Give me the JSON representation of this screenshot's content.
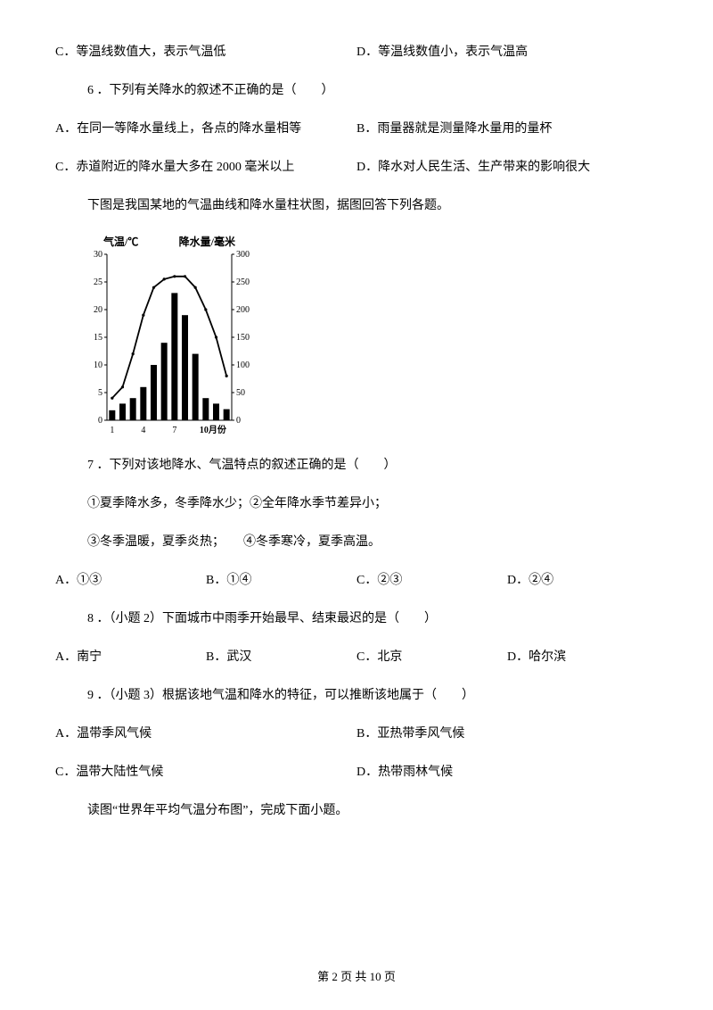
{
  "q5_opts": {
    "c": "C．等温线数值大，表示气温低",
    "d": "D．等温线数值小，表示气温高"
  },
  "q6": {
    "stem": "6 ．下列有关降水的叙述不正确的是（　　）",
    "a": "A．在同一等降水量线上，各点的降水量相等",
    "b": "B．雨量器就是测量降水量用的量杯",
    "c": "C．赤道附近的降水量大多在 2000 毫米以上",
    "d": "D．降水对人民生活、生产带来的影响很大"
  },
  "intro7": "下图是我国某地的气温曲线和降水量柱状图，据图回答下列各题。",
  "chart": {
    "temp_label": "气温/℃",
    "precip_label": "降水量/毫米",
    "x_label": "10月份",
    "temp_ticks": [
      "0",
      "5",
      "10",
      "15",
      "20",
      "25",
      "30"
    ],
    "precip_ticks": [
      "0",
      "50",
      "100",
      "150",
      "200",
      "250",
      "300"
    ],
    "x_ticks": [
      "1",
      "4",
      "7"
    ],
    "temps": [
      4,
      6,
      12,
      19,
      24,
      25.5,
      26,
      26,
      24,
      20,
      15,
      8
    ],
    "precip": [
      18,
      30,
      40,
      60,
      100,
      140,
      230,
      190,
      120,
      40,
      30,
      20
    ],
    "temp_max": 30,
    "precip_max": 300,
    "bar_color": "#000000",
    "line_color": "#000000",
    "bg": "#ffffff",
    "axis_color": "#000000",
    "font_size_label": 12,
    "font_size_tick": 10,
    "line_width": 1.8,
    "tick_len": 3
  },
  "q7": {
    "stem": "7 ．下列对该地降水、气温特点的叙述正确的是（　　）",
    "line1": "①夏季降水多，冬季降水少；②全年降水季节差异小；",
    "line2": "③冬季温暖，夏季炎热；　　④冬季寒冷，夏季高温。",
    "a": "A．①③",
    "b": "B．①④",
    "c": "C．②③",
    "d": "D．②④"
  },
  "q8": {
    "stem": "8 ．（小题 2）下面城市中雨季开始最早、结束最迟的是（　　）",
    "a": "A．南宁",
    "b": "B．武汉",
    "c": "C．北京",
    "d": "D．哈尔滨"
  },
  "q9": {
    "stem": "9 ．（小题 3）根据该地气温和降水的特征，可以推断该地属于（　　）",
    "a": "A．温带季风气候",
    "b": "B．亚热带季风气候",
    "c": "C．温带大陆性气候",
    "d": "D．热带雨林气候"
  },
  "intro10": "读图“世界年平均气温分布图”，完成下面小题。",
  "footer": "第 2 页 共 10 页"
}
